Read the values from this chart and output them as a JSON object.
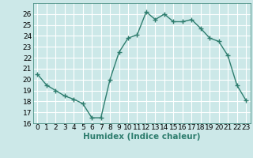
{
  "x": [
    0,
    1,
    2,
    3,
    4,
    5,
    6,
    7,
    8,
    9,
    10,
    11,
    12,
    13,
    14,
    15,
    16,
    17,
    18,
    19,
    20,
    21,
    22,
    23
  ],
  "y": [
    20.5,
    19.5,
    19.0,
    18.5,
    18.2,
    17.8,
    16.5,
    16.5,
    20.0,
    22.5,
    23.8,
    24.1,
    26.2,
    25.5,
    26.0,
    25.3,
    25.3,
    25.5,
    24.7,
    23.8,
    23.5,
    22.2,
    19.5,
    18.1
  ],
  "line_color": "#2e7d6e",
  "marker": "+",
  "bg_color": "#cce8e8",
  "grid_color": "#ffffff",
  "xlabel": "Humidex (Indice chaleur)",
  "ylim": [
    16,
    27
  ],
  "xlim": [
    -0.5,
    23.5
  ],
  "xticks": [
    0,
    1,
    2,
    3,
    4,
    5,
    6,
    7,
    8,
    9,
    10,
    11,
    12,
    13,
    14,
    15,
    16,
    17,
    18,
    19,
    20,
    21,
    22,
    23
  ],
  "yticks": [
    16,
    17,
    18,
    19,
    20,
    21,
    22,
    23,
    24,
    25,
    26
  ],
  "linewidth": 1.0,
  "markersize": 4,
  "markeredgewidth": 1.0,
  "tick_fontsize": 6.5,
  "xlabel_fontsize": 7.5
}
